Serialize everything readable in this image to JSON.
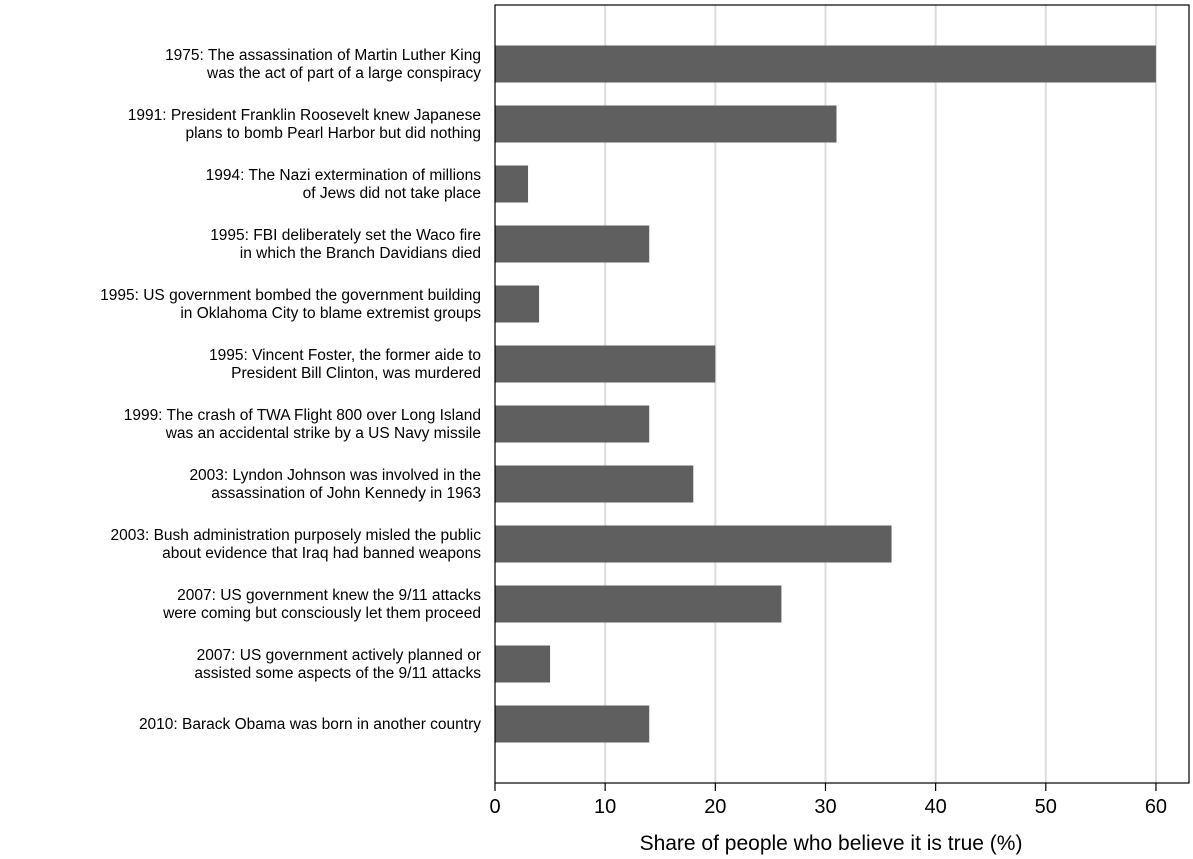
{
  "chart_data": {
    "type": "bar",
    "orientation": "horizontal",
    "categories": [
      [
        "1975: The assassination of Martin Luther King",
        "was the act of part of a large conspiracy"
      ],
      [
        "1991: President Franklin Roosevelt knew Japanese",
        "plans to bomb Pearl Harbor but did nothing"
      ],
      [
        "1994: The Nazi extermination of millions",
        "of Jews did not take place"
      ],
      [
        "1995: FBI deliberately set the Waco fire",
        "in which the Branch Davidians died"
      ],
      [
        "1995: US government bombed the government building",
        "in Oklahoma City to blame extremist groups"
      ],
      [
        "1995: Vincent Foster, the former aide to",
        "President Bill Clinton, was murdered"
      ],
      [
        "1999: The crash of TWA Flight 800 over Long Island",
        "was an accidental strike by a US Navy missile"
      ],
      [
        "2003: Lyndon Johnson was involved in the",
        "assassination of John Kennedy in 1963"
      ],
      [
        "2003: Bush administration purposely misled the public",
        "about evidence that Iraq had banned weapons"
      ],
      [
        "2007: US government knew the 9/11 attacks",
        "were coming but consciously let them proceed"
      ],
      [
        "2007: US government actively planned or",
        "assisted some aspects of the 9/11 attacks"
      ],
      [
        "2010: Barack Obama was born in another country"
      ]
    ],
    "values": [
      60,
      31,
      3,
      14,
      4,
      20,
      14,
      18,
      36,
      26,
      5,
      14
    ],
    "xlabel": "Share of people who believe it is true (%)",
    "ylabel": "",
    "xlim": [
      0,
      63
    ],
    "xticks": [
      "0",
      "10",
      "20",
      "30",
      "40",
      "50",
      "60"
    ],
    "grid": "vertical",
    "legend": "none",
    "colors": {
      "bar": "#5f5f5f",
      "grid": "#dcdcdc",
      "axis": "#000000",
      "background": "#ffffff"
    }
  }
}
